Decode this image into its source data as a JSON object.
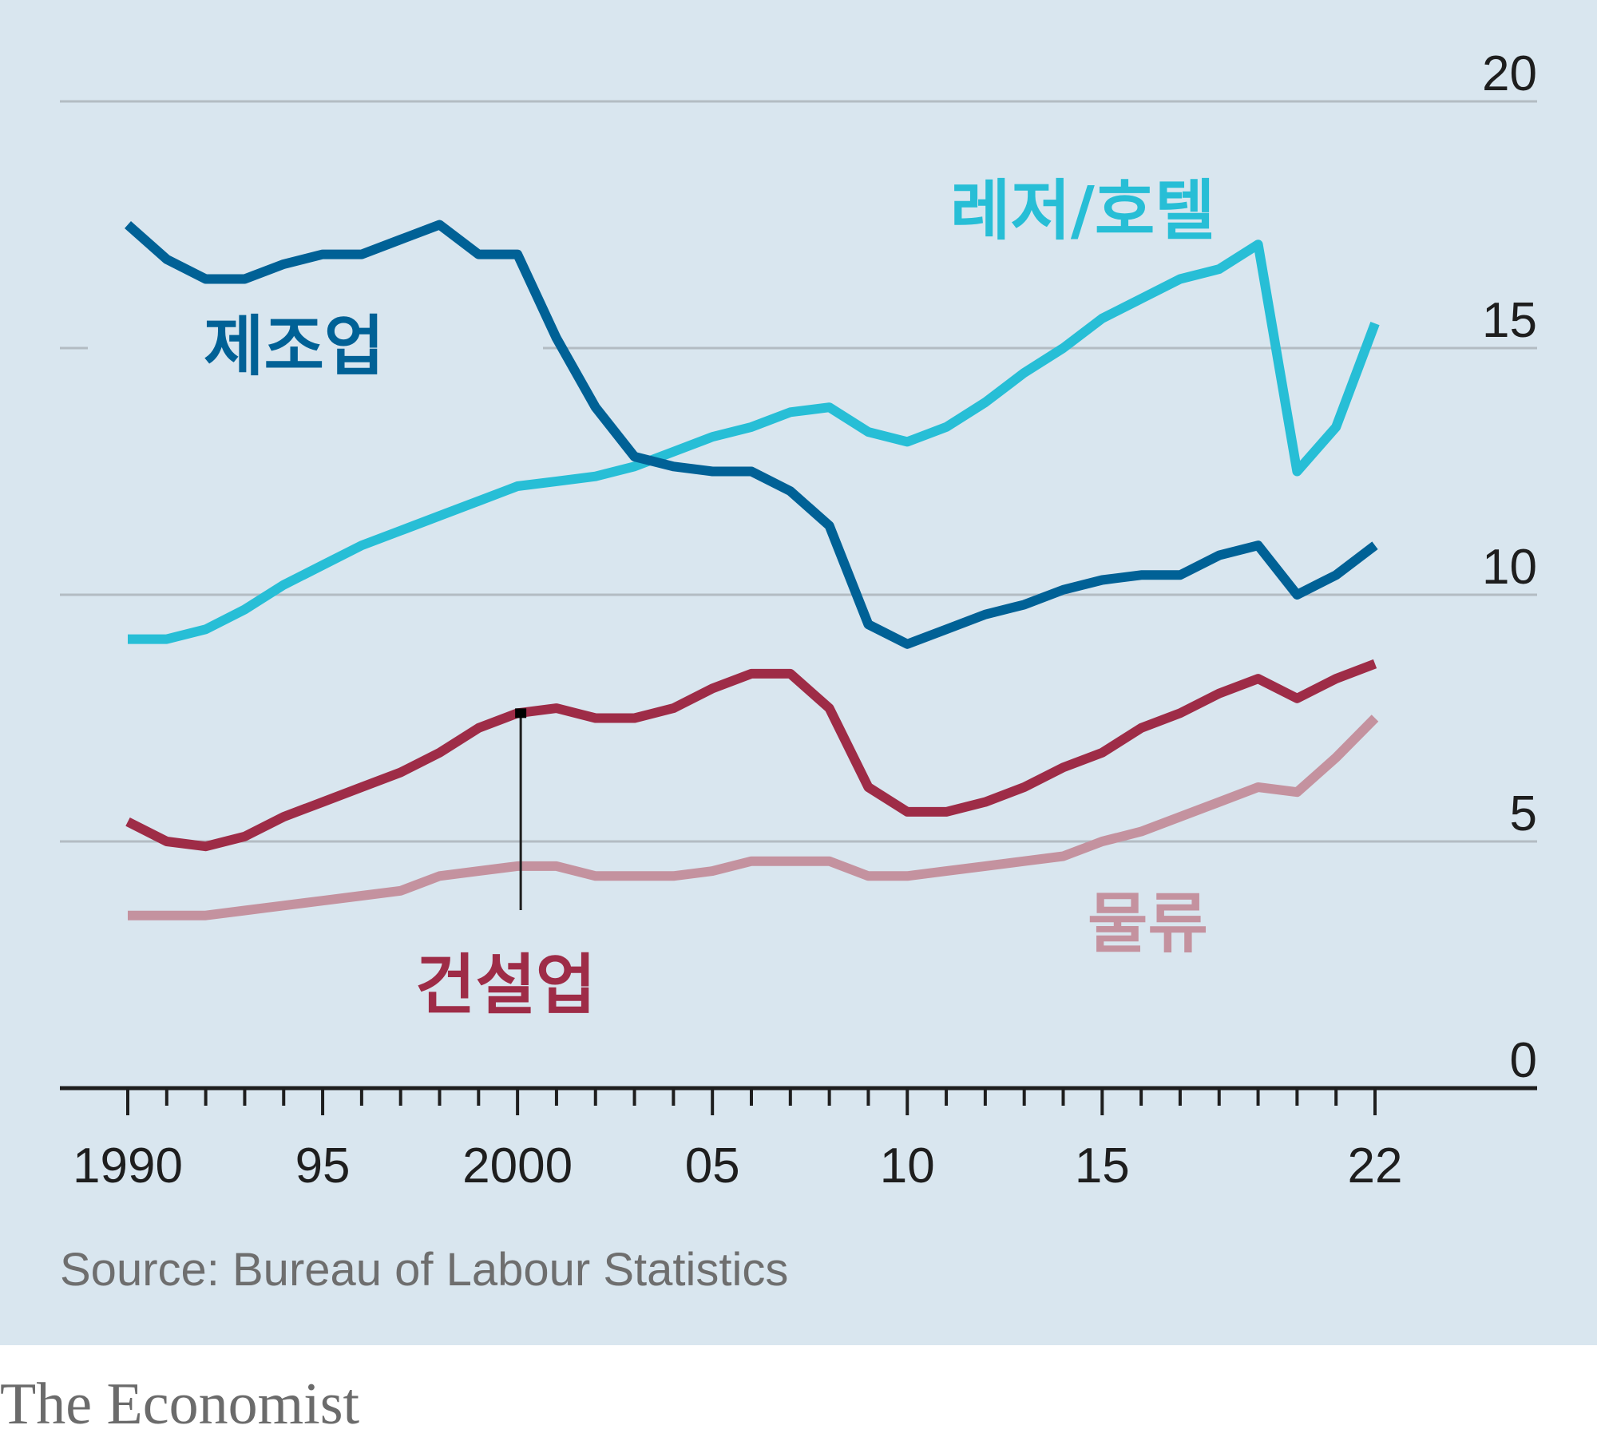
{
  "chart_data": {
    "type": "line",
    "x": [
      1990,
      1991,
      1992,
      1993,
      1994,
      1995,
      1996,
      1997,
      1998,
      1999,
      2000,
      2001,
      2002,
      2003,
      2004,
      2005,
      2006,
      2007,
      2008,
      2009,
      2010,
      2011,
      2012,
      2013,
      2014,
      2015,
      2016,
      2017,
      2018,
      2019,
      2020,
      2021,
      2022
    ],
    "xlim": [
      1990,
      2022
    ],
    "ylim": [
      0,
      20
    ],
    "x_ticks": [
      {
        "value": 1990,
        "label": "1990"
      },
      {
        "value": 1995,
        "label": "95"
      },
      {
        "value": 2000,
        "label": "2000"
      },
      {
        "value": 2005,
        "label": "05"
      },
      {
        "value": 2010,
        "label": "10"
      },
      {
        "value": 2015,
        "label": "15"
      },
      {
        "value": 2022,
        "label": "22"
      }
    ],
    "y_ticks": [
      {
        "value": 0,
        "label": "0"
      },
      {
        "value": 5,
        "label": "5"
      },
      {
        "value": 10,
        "label": "10"
      },
      {
        "value": 15,
        "label": "15"
      },
      {
        "value": 20,
        "label": "20"
      }
    ],
    "grid": "horizontal",
    "series": [
      {
        "name": "제조업",
        "color": "#006196",
        "values": [
          17.5,
          16.8,
          16.4,
          16.4,
          16.7,
          16.9,
          16.9,
          17.2,
          17.5,
          16.9,
          16.9,
          15.2,
          13.8,
          12.8,
          12.6,
          12.5,
          12.5,
          12.1,
          11.4,
          9.4,
          9.0,
          9.3,
          9.6,
          9.8,
          10.1,
          10.3,
          10.4,
          10.4,
          10.8,
          11.0,
          10.0,
          10.4,
          11.0
        ]
      },
      {
        "name": "레저/호텔",
        "color": "#27bed6",
        "values": [
          9.1,
          9.1,
          9.3,
          9.7,
          10.2,
          10.6,
          11.0,
          11.3,
          11.6,
          11.9,
          12.2,
          12.3,
          12.4,
          12.6,
          12.9,
          13.2,
          13.4,
          13.7,
          13.8,
          13.3,
          13.1,
          13.4,
          13.9,
          14.5,
          15.0,
          15.6,
          16.0,
          16.4,
          16.6,
          17.1,
          12.5,
          13.4,
          15.5
        ]
      },
      {
        "name": "건설업",
        "color": "#9e2c47",
        "values": [
          5.4,
          5.0,
          4.9,
          5.1,
          5.5,
          5.8,
          6.1,
          6.4,
          6.8,
          7.3,
          7.6,
          7.7,
          7.5,
          7.5,
          7.7,
          8.1,
          8.4,
          8.4,
          7.7,
          6.1,
          5.6,
          5.6,
          5.8,
          6.1,
          6.5,
          6.8,
          7.3,
          7.6,
          8.0,
          8.3,
          7.9,
          8.3,
          8.6
        ]
      },
      {
        "name": "물류",
        "color": "#c4929f",
        "values": [
          3.5,
          3.5,
          3.5,
          3.6,
          3.7,
          3.8,
          3.9,
          4.0,
          4.3,
          4.4,
          4.5,
          4.5,
          4.3,
          4.3,
          4.3,
          4.4,
          4.6,
          4.6,
          4.6,
          4.3,
          4.3,
          4.4,
          4.5,
          4.6,
          4.7,
          5.0,
          5.2,
          5.5,
          5.8,
          6.1,
          6.0,
          6.7,
          7.5
        ]
      }
    ],
    "annotations": [
      {
        "text": "건설업",
        "points_to": {
          "x": 2000,
          "y": 7.6
        }
      }
    ],
    "source": "Source: Bureau of Labour Statistics"
  },
  "branding": {
    "publisher": "The Economist"
  },
  "colors": {
    "background": "#d9e6ef",
    "grid": "#b3bcc3",
    "axis": "#1e1e1e"
  }
}
